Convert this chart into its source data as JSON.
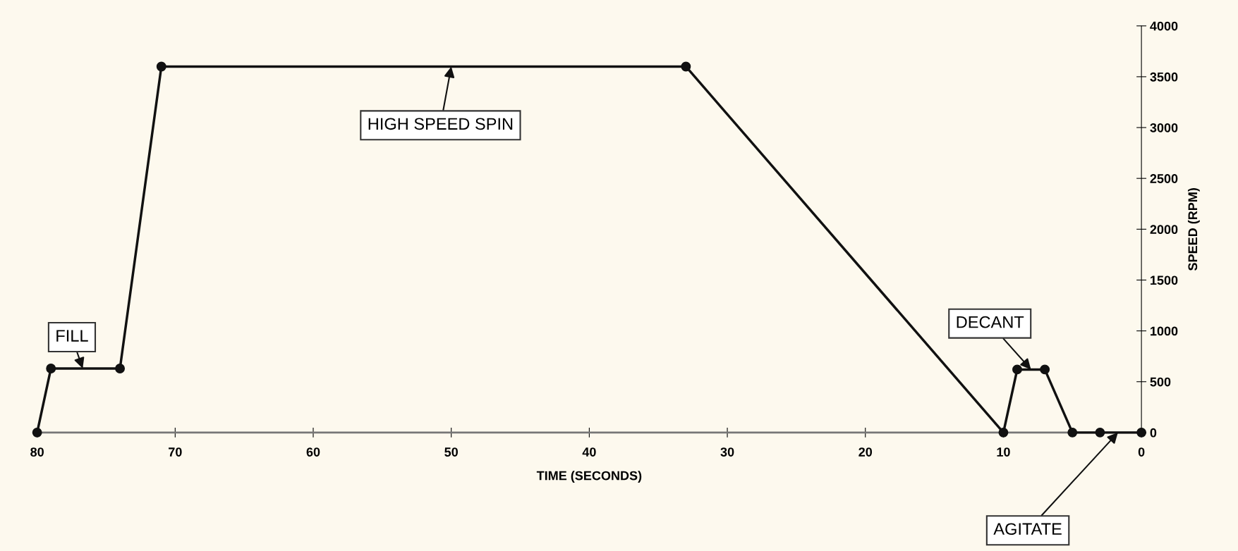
{
  "chart_data": {
    "type": "line",
    "xlabel": "TIME (SECONDS)",
    "ylabel": "SPEED (RPM)",
    "x": [
      80,
      79,
      74,
      71,
      33,
      10,
      9,
      7,
      5,
      3,
      0
    ],
    "series": [
      {
        "color": "#111111",
        "values": [
          0,
          630,
          630,
          3600,
          3600,
          0,
          620,
          620,
          0,
          0,
          0
        ]
      }
    ],
    "xlim": [
      80,
      0
    ],
    "xticks": [
      80,
      70,
      60,
      50,
      40,
      30,
      20,
      10,
      0
    ],
    "ylim": [
      0,
      4000
    ],
    "yticks": [
      0,
      500,
      1000,
      1500,
      2000,
      2500,
      3000,
      3500,
      4000
    ],
    "marker": "circle",
    "line_style": "solid",
    "grid": false,
    "legend": false,
    "annotations": [
      {
        "text": "HIGH SPEED SPIN",
        "x": 50,
        "y": 3600
      },
      {
        "text": "FILL",
        "x": 76.7,
        "y": 630
      },
      {
        "text": "DECANT",
        "x": 8,
        "y": 620
      },
      {
        "text": "AGITATE",
        "x": 1.7,
        "y": 0
      }
    ]
  }
}
